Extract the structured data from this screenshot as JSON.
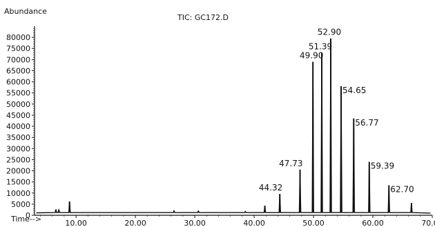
{
  "chart_data": {
    "type": "line",
    "title": "TIC: GC172.D",
    "ylabel": "Abundance",
    "xlabel": "Time-->",
    "xlim": [
      3,
      70
    ],
    "ylim": [
      0,
      85000
    ],
    "x_ticks": [
      "10.00",
      "20.00",
      "30.00",
      "40.00",
      "50.00",
      "60.00",
      "70.00"
    ],
    "y_ticks": [
      "0",
      "5000",
      "10000",
      "15000",
      "20000",
      "25000",
      "30000",
      "35000",
      "40000",
      "45000",
      "50000",
      "55000",
      "60000",
      "65000",
      "70000",
      "75000",
      "80000"
    ],
    "grid": false,
    "baseline": 1200,
    "series": [
      {
        "peaks": [
          {
            "x": 6.6,
            "y": 2600
          },
          {
            "x": 7.1,
            "y": 2400
          },
          {
            "x": 8.9,
            "y": 6200
          },
          {
            "x": 26.5,
            "y": 2000
          },
          {
            "x": 30.6,
            "y": 1900
          },
          {
            "x": 38.5,
            "y": 1700
          },
          {
            "x": 41.8,
            "y": 4300
          },
          {
            "x": 44.32,
            "y": 9600,
            "label": "44.32"
          },
          {
            "x": 47.73,
            "y": 20500,
            "label": "47.73"
          },
          {
            "x": 49.9,
            "y": 69000,
            "label": "49.90"
          },
          {
            "x": 51.39,
            "y": 73000,
            "label": "51.39"
          },
          {
            "x": 52.9,
            "y": 79500,
            "label": "52.90"
          },
          {
            "x": 54.65,
            "y": 58000,
            "label": "54.65"
          },
          {
            "x": 56.77,
            "y": 43500,
            "label": "56.77"
          },
          {
            "x": 59.39,
            "y": 24000,
            "label": "59.39"
          },
          {
            "x": 62.7,
            "y": 13500,
            "label": "62.70"
          },
          {
            "x": 66.5,
            "y": 5500
          }
        ]
      }
    ]
  }
}
